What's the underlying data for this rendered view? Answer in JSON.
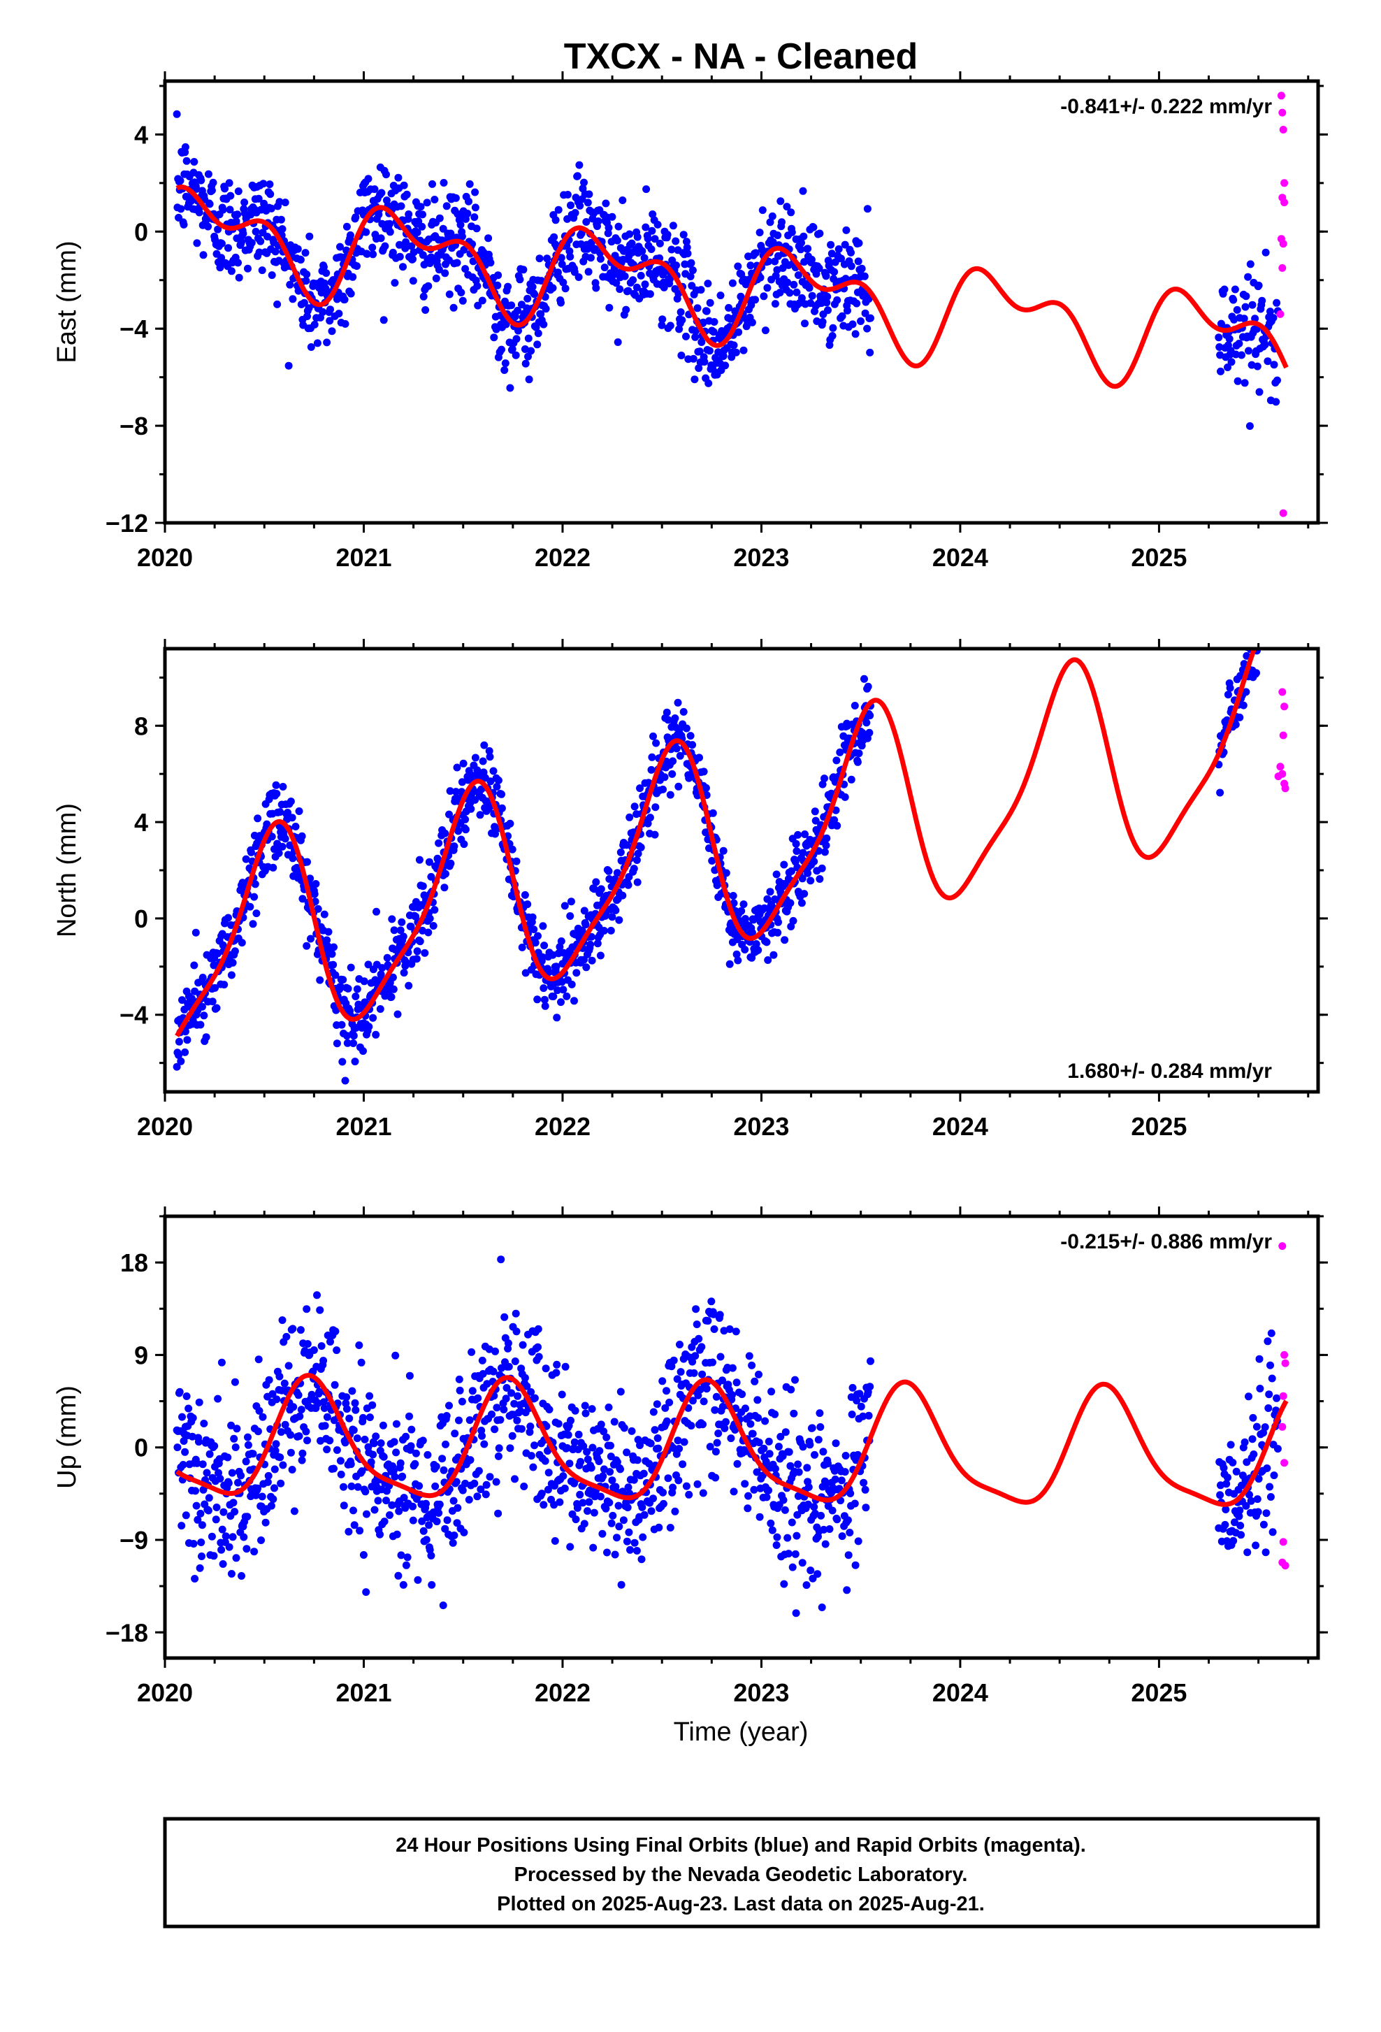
{
  "title": "TXCX  - NA - Cleaned",
  "x_axis_label": "Time (year)",
  "footer": {
    "line1": "24 Hour Positions Using Final Orbits (blue) and Rapid Orbits (magenta).",
    "line2": "Processed by the Nevada Geodetic Laboratory.",
    "line3": "Plotted on 2025-Aug-23. Last data on 2025-Aug-21."
  },
  "colors": {
    "final_orbits": "#0000ff",
    "rapid_orbits": "#ff00ff",
    "model_fit": "#ff0000",
    "frame": "#000000"
  },
  "chart_data": [
    {
      "type": "scatter",
      "panel": "East",
      "ylabel": "East (mm)",
      "xlim": [
        2020.0,
        2025.8
      ],
      "ylim": [
        -12,
        6.2
      ],
      "yticks": [
        4,
        0,
        -4,
        -8,
        -12
      ],
      "ytick_labels": [
        "4",
        "0",
        "−4",
        "−8",
        "−12"
      ],
      "xticks": [
        2020,
        2021,
        2022,
        2023,
        2024,
        2025
      ],
      "rate_label": "-0.841+/- 0.222 mm/yr",
      "rate_position": "top-right",
      "model": {
        "trend": 0.1,
        "rate": -0.841,
        "annual": [
          0.2,
          1.5
        ],
        "semiannual": [
          0.9,
          0.5
        ]
      },
      "model_x_range": [
        2020.06,
        2025.64
      ],
      "final_noise": 1.1,
      "final_range": [
        2020.06,
        2023.55
      ],
      "final_range2": [
        2025.3,
        2025.6
      ],
      "rapid_points": [
        [
          2025.615,
          5.6
        ],
        [
          2025.62,
          4.9
        ],
        [
          2025.625,
          4.2
        ],
        [
          2025.63,
          2.0
        ],
        [
          2025.62,
          1.4
        ],
        [
          2025.63,
          1.2
        ],
        [
          2025.615,
          -0.3
        ],
        [
          2025.625,
          -0.5
        ],
        [
          2025.62,
          -1.5
        ],
        [
          2025.61,
          -3.4
        ],
        [
          2025.625,
          -11.6
        ]
      ]
    },
    {
      "type": "scatter",
      "panel": "North",
      "ylabel": "North (mm)",
      "xlim": [
        2020.0,
        2025.8
      ],
      "ylim": [
        -7.2,
        11.2
      ],
      "yticks": [
        8,
        4,
        0,
        -4
      ],
      "ytick_labels": [
        "8",
        "4",
        "0",
        "−4"
      ],
      "xticks": [
        2020,
        2021,
        2022,
        2023,
        2024,
        2025
      ],
      "rate_label": "1.680+/- 0.284 mm/yr",
      "rate_position": "bottom-right",
      "model": {
        "trend": -1.8,
        "rate": 1.68,
        "annual": [
          -4.0,
          -0.8
        ],
        "semiannual": [
          0.2,
          1.0
        ]
      },
      "model_x_range": [
        2020.06,
        2025.64
      ],
      "final_noise": 0.85,
      "final_range": [
        2020.06,
        2023.55
      ],
      "final_range2": [
        2025.3,
        2025.6
      ],
      "rapid_points": [
        [
          2025.62,
          9.4
        ],
        [
          2025.63,
          8.8
        ],
        [
          2025.625,
          7.6
        ],
        [
          2025.61,
          6.3
        ],
        [
          2025.6,
          5.9
        ],
        [
          2025.63,
          5.6
        ],
        [
          2025.635,
          5.4
        ],
        [
          2025.62,
          6.0
        ]
      ]
    },
    {
      "type": "scatter",
      "panel": "Up",
      "ylabel": "Up (mm)",
      "xlim": [
        2020.0,
        2025.8
      ],
      "ylim": [
        -20.5,
        22.5
      ],
      "yticks": [
        18,
        9,
        0,
        -9,
        -18
      ],
      "ytick_labels": [
        "18",
        "9",
        "0",
        "−9",
        "−18"
      ],
      "xticks": [
        2020,
        2021,
        2022,
        2023,
        2024,
        2025
      ],
      "rate_label": "-0.215+/- 0.886 mm/yr",
      "rate_position": "top-right",
      "model": {
        "trend": 0.3,
        "rate": -0.215,
        "annual": [
          -0.3,
          -5.5
        ],
        "semiannual": [
          -1.2,
          0.8
        ]
      },
      "model_x_range": [
        2020.06,
        2025.64
      ],
      "final_noise": 4.2,
      "final_range": [
        2020.06,
        2023.55
      ],
      "final_range2": [
        2025.3,
        2025.6
      ],
      "rapid_points": [
        [
          2025.62,
          19.6
        ],
        [
          2025.63,
          9.0
        ],
        [
          2025.635,
          8.2
        ],
        [
          2025.625,
          5.0
        ],
        [
          2025.62,
          2.0
        ],
        [
          2025.63,
          -1.5
        ],
        [
          2025.625,
          -9.2
        ],
        [
          2025.62,
          -11.2
        ],
        [
          2025.635,
          -11.5
        ]
      ]
    }
  ]
}
